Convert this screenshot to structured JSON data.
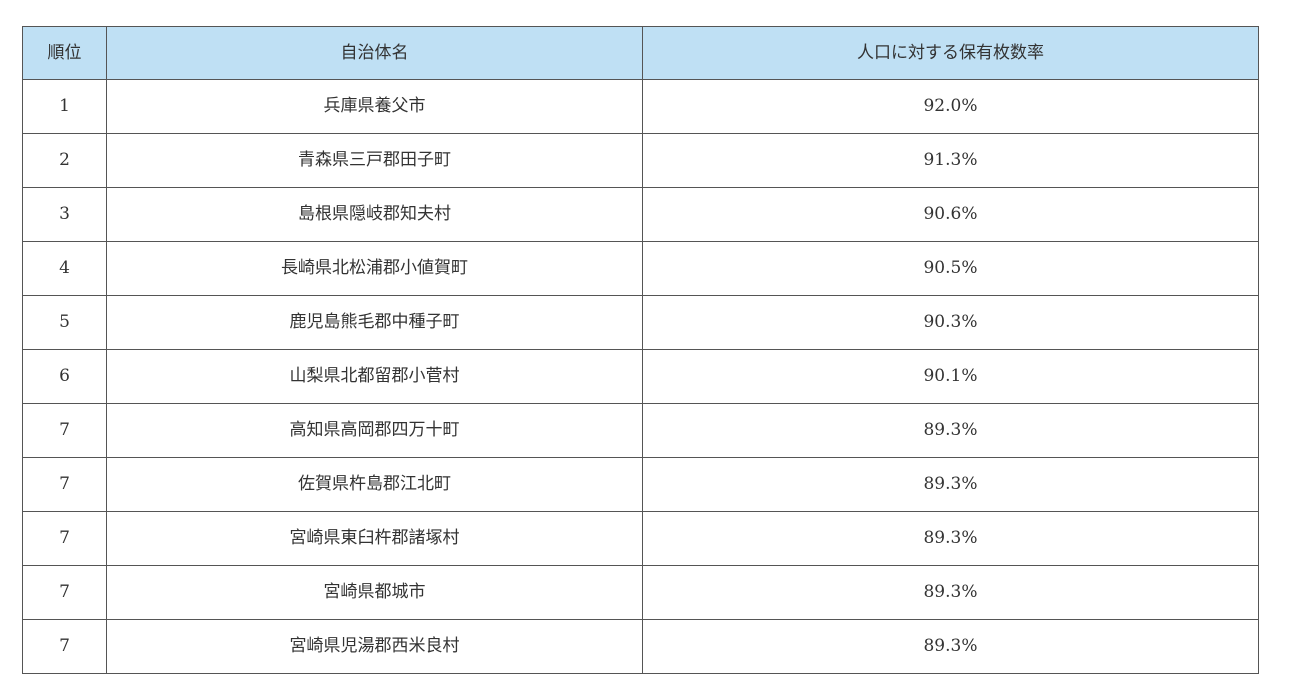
{
  "table": {
    "headers": {
      "rank": "順位",
      "municipality": "自治体名",
      "ownership_rate": "人口に対する保有枚数率"
    },
    "header_color": "#bfe0f4",
    "rows": [
      {
        "rank": "1",
        "municipality": "兵庫県養父市",
        "rate": "92.0%"
      },
      {
        "rank": "2",
        "municipality": "青森県三戸郡田子町",
        "rate": "91.3%"
      },
      {
        "rank": "3",
        "municipality": "島根県隠岐郡知夫村",
        "rate": "90.6%"
      },
      {
        "rank": "4",
        "municipality": "長崎県北松浦郡小値賀町",
        "rate": "90.5%"
      },
      {
        "rank": "5",
        "municipality": "鹿児島熊毛郡中種子町",
        "rate": "90.3%"
      },
      {
        "rank": "6",
        "municipality": "山梨県北都留郡小菅村",
        "rate": "90.1%"
      },
      {
        "rank": "7",
        "municipality": "高知県高岡郡四万十町",
        "rate": "89.3%"
      },
      {
        "rank": "7",
        "municipality": "佐賀県杵島郡江北町",
        "rate": "89.3%"
      },
      {
        "rank": "7",
        "municipality": "宮崎県東臼杵郡諸塚村",
        "rate": "89.3%"
      },
      {
        "rank": "7",
        "municipality": "宮崎県都城市",
        "rate": "89.3%"
      },
      {
        "rank": "7",
        "municipality": "宮崎県児湯郡西米良村",
        "rate": "89.3%"
      }
    ]
  }
}
